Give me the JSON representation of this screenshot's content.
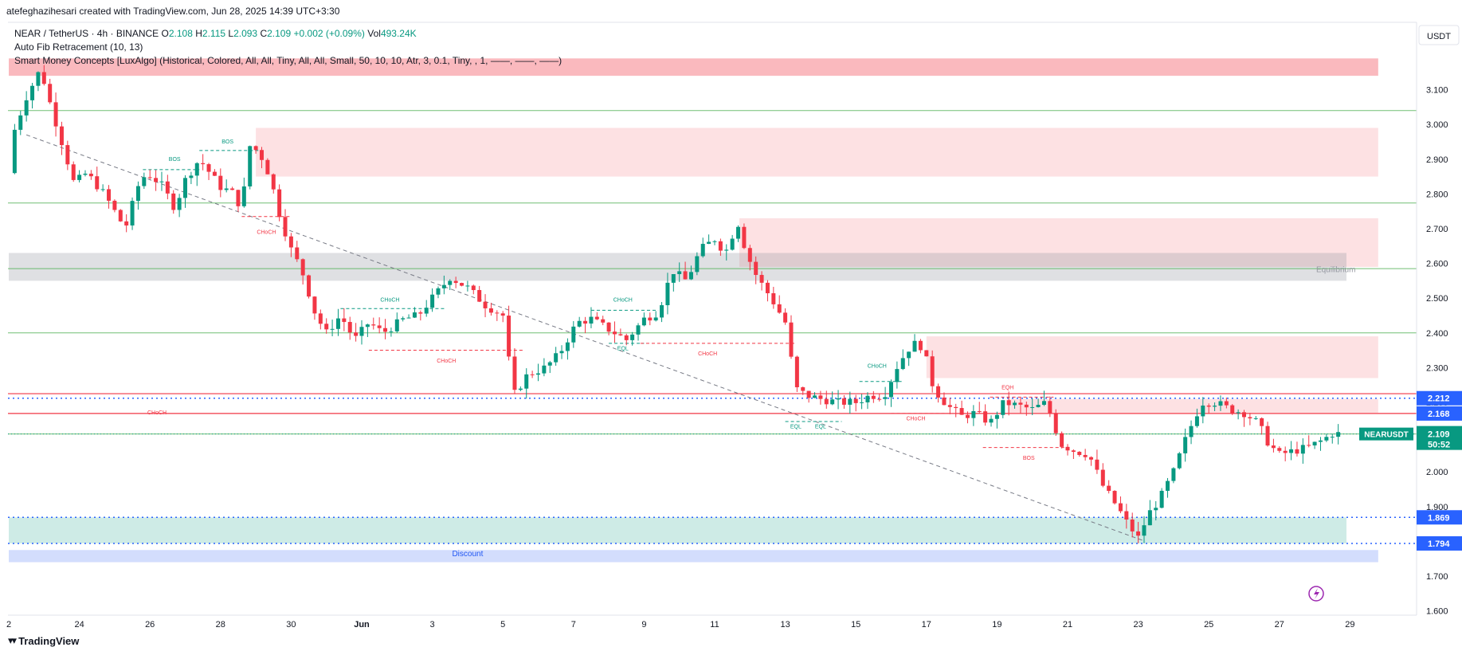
{
  "header": {
    "credit": "atefeghazihesari created with TradingView.com, Jun 28, 2025 14:39 UTC+3:30"
  },
  "legend": {
    "symbol": "NEAR / TetherUS · 4h · BINANCE",
    "open_label": "O",
    "open": "2.108",
    "high_label": "H",
    "high": "2.115",
    "low_label": "L",
    "low": "2.093",
    "close_label": "C",
    "close": "2.109",
    "change": "+0.002 (+0.09%)",
    "vol_label": "Vol",
    "vol": "493.24K",
    "indicator1": "Auto Fib Retracement (10, 13)",
    "indicator2": "Smart Money Concepts [LuxAlgo] (Historical, Colored, All, All, Tiny, All, All, Small, 50, 10, 10, Atr, 3, 0.1, Tiny, , 1, ——, ——, ——)"
  },
  "currency": "USDT",
  "brand": "TradingView",
  "colors": {
    "up": "#089981",
    "down": "#f23645",
    "supply": "#f23645",
    "demand": "#089981",
    "fib_green": "#4caf50",
    "blue_line": "#2962ff",
    "premium": "#f23645",
    "discount": "#2157f3"
  },
  "chart_data": {
    "type": "candlestick",
    "timeframe": "4h",
    "symbol": "NEARUSDT",
    "y_range": [
      1.56,
      3.2
    ],
    "y_ticks": [
      3.1,
      3.0,
      2.9,
      2.8,
      2.7,
      2.6,
      2.5,
      2.4,
      2.3,
      2.2,
      2.1,
      2.0,
      1.9,
      1.8,
      1.7,
      1.6
    ],
    "y_tick_labels": [
      "3.100",
      "3.000",
      "2.900",
      "2.800",
      "2.700",
      "2.600",
      "2.500",
      "2.400",
      "2.300",
      "2.200",
      "2.100",
      "2.000",
      "1.900",
      "1.800",
      "1.700",
      "1.600"
    ],
    "x_labels": [
      {
        "label": "2",
        "day": 0
      },
      {
        "label": "24",
        "day": 2
      },
      {
        "label": "26",
        "day": 4
      },
      {
        "label": "28",
        "day": 6
      },
      {
        "label": "30",
        "day": 8
      },
      {
        "label": "Jun",
        "day": 10
      },
      {
        "label": "3",
        "day": 12
      },
      {
        "label": "5",
        "day": 14
      },
      {
        "label": "7",
        "day": 16
      },
      {
        "label": "9",
        "day": 18
      },
      {
        "label": "11",
        "day": 20
      },
      {
        "label": "13",
        "day": 22
      },
      {
        "label": "15",
        "day": 24
      },
      {
        "label": "17",
        "day": 26
      },
      {
        "label": "19",
        "day": 28
      },
      {
        "label": "21",
        "day": 30
      },
      {
        "label": "23",
        "day": 32
      },
      {
        "label": "25",
        "day": 34
      },
      {
        "label": "27",
        "day": 36
      },
      {
        "label": "29",
        "day": 38
      }
    ],
    "anchors": [
      [
        0,
        2.86
      ],
      [
        0.15,
        2.98
      ],
      [
        0.5,
        3.08
      ],
      [
        0.9,
        3.16
      ],
      [
        1.2,
        3.05
      ],
      [
        1.5,
        2.95
      ],
      [
        1.85,
        2.83
      ],
      [
        2.2,
        2.86
      ],
      [
        2.7,
        2.8
      ],
      [
        3.0,
        2.75
      ],
      [
        3.3,
        2.7
      ],
      [
        3.65,
        2.82
      ],
      [
        3.9,
        2.86
      ],
      [
        4.3,
        2.83
      ],
      [
        4.7,
        2.76
      ],
      [
        5.0,
        2.84
      ],
      [
        5.4,
        2.9
      ],
      [
        5.7,
        2.86
      ],
      [
        6.0,
        2.82
      ],
      [
        6.4,
        2.8
      ],
      [
        6.6,
        2.75
      ],
      [
        6.8,
        2.94
      ],
      [
        7.1,
        2.92
      ],
      [
        7.4,
        2.85
      ],
      [
        7.7,
        2.73
      ],
      [
        8.0,
        2.64
      ],
      [
        8.3,
        2.58
      ],
      [
        8.7,
        2.45
      ],
      [
        9.0,
        2.4
      ],
      [
        9.4,
        2.45
      ],
      [
        9.8,
        2.38
      ],
      [
        10.2,
        2.43
      ],
      [
        10.6,
        2.4
      ],
      [
        11.2,
        2.44
      ],
      [
        11.6,
        2.45
      ],
      [
        12.0,
        2.5
      ],
      [
        12.5,
        2.56
      ],
      [
        13.0,
        2.53
      ],
      [
        13.5,
        2.48
      ],
      [
        14.0,
        2.45
      ],
      [
        14.3,
        2.22
      ],
      [
        14.7,
        2.28
      ],
      [
        15.2,
        2.3
      ],
      [
        15.6,
        2.34
      ],
      [
        16.1,
        2.43
      ],
      [
        16.5,
        2.44
      ],
      [
        17.0,
        2.41
      ],
      [
        17.5,
        2.38
      ],
      [
        18.0,
        2.44
      ],
      [
        18.4,
        2.46
      ],
      [
        18.8,
        2.58
      ],
      [
        19.2,
        2.55
      ],
      [
        19.6,
        2.64
      ],
      [
        20.0,
        2.67
      ],
      [
        20.3,
        2.63
      ],
      [
        20.65,
        2.72
      ],
      [
        20.9,
        2.63
      ],
      [
        21.2,
        2.56
      ],
      [
        21.6,
        2.5
      ],
      [
        22.0,
        2.43
      ],
      [
        22.3,
        2.24
      ],
      [
        22.6,
        2.22
      ],
      [
        23.0,
        2.21
      ],
      [
        23.5,
        2.2
      ],
      [
        24.0,
        2.2
      ],
      [
        24.4,
        2.22
      ],
      [
        24.8,
        2.22
      ],
      [
        25.2,
        2.31
      ],
      [
        25.6,
        2.37
      ],
      [
        25.9,
        2.36
      ],
      [
        26.2,
        2.24
      ],
      [
        26.6,
        2.19
      ],
      [
        27.0,
        2.16
      ],
      [
        27.4,
        2.17
      ],
      [
        27.8,
        2.14
      ],
      [
        28.2,
        2.2
      ],
      [
        28.6,
        2.19
      ],
      [
        29.0,
        2.18
      ],
      [
        29.4,
        2.2
      ],
      [
        29.8,
        2.08
      ],
      [
        30.2,
        2.06
      ],
      [
        30.6,
        2.05
      ],
      [
        31.0,
        1.96
      ],
      [
        31.4,
        1.9
      ],
      [
        31.7,
        1.85
      ],
      [
        32.0,
        1.81
      ],
      [
        32.3,
        1.88
      ],
      [
        32.6,
        1.92
      ],
      [
        33.0,
        2.0
      ],
      [
        33.4,
        2.11
      ],
      [
        33.8,
        2.2
      ],
      [
        34.2,
        2.2
      ],
      [
        34.6,
        2.18
      ],
      [
        35.0,
        2.17
      ],
      [
        35.4,
        2.14
      ],
      [
        35.7,
        2.08
      ],
      [
        36.0,
        2.05
      ],
      [
        36.4,
        2.06
      ],
      [
        36.8,
        2.07
      ],
      [
        37.2,
        2.09
      ],
      [
        37.5,
        2.11
      ],
      [
        37.75,
        2.109
      ]
    ],
    "zones": [
      {
        "name": "premium-top",
        "y": [
          3.14,
          3.19
        ],
        "x": [
          0,
          38.8
        ],
        "color": "#f23645",
        "opacity": 0.35
      },
      {
        "name": "supply-1",
        "y": [
          2.85,
          2.99
        ],
        "x": [
          7.0,
          38.8
        ],
        "color": "#f23645",
        "opacity": 0.15
      },
      {
        "name": "supply-2",
        "y": [
          2.59,
          2.73
        ],
        "x": [
          20.7,
          38.8
        ],
        "color": "#f23645",
        "opacity": 0.15
      },
      {
        "name": "equilibrium",
        "y": [
          2.55,
          2.63
        ],
        "x": [
          0,
          37.9
        ],
        "color": "#9598a1",
        "opacity": 0.3
      },
      {
        "name": "supply-3",
        "y": [
          2.27,
          2.39
        ],
        "x": [
          26.0,
          38.8
        ],
        "color": "#f23645",
        "opacity": 0.15
      },
      {
        "name": "supply-4",
        "y": [
          2.17,
          2.21
        ],
        "x": [
          28.3,
          38.8
        ],
        "color": "#f23645",
        "opacity": 0.15
      },
      {
        "name": "demand",
        "y": [
          1.794,
          1.869
        ],
        "x": [
          0,
          37.9
        ],
        "color": "#089981",
        "opacity": 0.2
      },
      {
        "name": "discount",
        "y": [
          1.74,
          1.775
        ],
        "x": [
          0,
          38.8
        ],
        "color": "#2157f3",
        "opacity": 0.2
      }
    ],
    "fib_levels": [
      3.04,
      2.774,
      2.585,
      2.4,
      2.109
    ],
    "dotted_levels": [
      {
        "value": 2.212,
        "label": "2.212"
      },
      {
        "value": 1.869,
        "label": "1.869"
      },
      {
        "value": 1.794,
        "label": "1.794"
      }
    ],
    "red_lines": [
      2.225,
      2.168
    ],
    "last_price": {
      "label": "NEARUSDT",
      "value": "2.109",
      "timer": "50:52"
    },
    "level_2168_label": "2.168",
    "trendline": {
      "from": [
        0.5,
        2.97
      ],
      "to": [
        32.2,
        1.8
      ]
    },
    "smc_labels": [
      {
        "text": "BOS",
        "day": 4.7,
        "price": 2.895,
        "color": "#089981"
      },
      {
        "text": "BOS",
        "day": 6.2,
        "price": 2.945,
        "color": "#089981"
      },
      {
        "text": "CHoCH",
        "day": 7.3,
        "price": 2.685,
        "color": "#f23645"
      },
      {
        "text": "CHoCH",
        "day": 10.8,
        "price": 2.49,
        "color": "#089981"
      },
      {
        "text": "CHoCH",
        "day": 12.4,
        "price": 2.315,
        "color": "#f23645"
      },
      {
        "text": "CHoCH",
        "day": 17.4,
        "price": 2.49,
        "color": "#089981"
      },
      {
        "text": "EQL",
        "day": 17.4,
        "price": 2.35,
        "color": "#089981"
      },
      {
        "text": "CHoCH",
        "day": 19.8,
        "price": 2.335,
        "color": "#f23645"
      },
      {
        "text": "CHoCH",
        "day": 4.2,
        "price": 2.165,
        "color": "#f23645"
      },
      {
        "text": "EQL",
        "day": 22.3,
        "price": 2.125,
        "color": "#089981"
      },
      {
        "text": "EQL",
        "day": 23.0,
        "price": 2.125,
        "color": "#089981"
      },
      {
        "text": "CHoCH",
        "day": 24.6,
        "price": 2.3,
        "color": "#089981"
      },
      {
        "text": "CHoCH",
        "day": 25.7,
        "price": 2.148,
        "color": "#f23645"
      },
      {
        "text": "EQH",
        "day": 28.3,
        "price": 2.238,
        "color": "#f23645"
      },
      {
        "text": "BOS",
        "day": 28.9,
        "price": 2.035,
        "color": "#f23645"
      },
      {
        "text": "Equilibrium",
        "day": 37.6,
        "price": 2.575,
        "color": "#9598a1"
      },
      {
        "text": "Discount",
        "day": 13.0,
        "price": 1.757,
        "color": "#2157f3"
      }
    ],
    "structure_lines": [
      {
        "from": [
          3.8,
          2.87
        ],
        "to": [
          5.4,
          2.87
        ],
        "color": "#089981"
      },
      {
        "from": [
          5.4,
          2.925
        ],
        "to": [
          7.1,
          2.925
        ],
        "color": "#089981"
      },
      {
        "from": [
          6.6,
          2.735
        ],
        "to": [
          8.0,
          2.735
        ],
        "color": "#f23645"
      },
      {
        "from": [
          9.4,
          2.47
        ],
        "to": [
          12.4,
          2.47
        ],
        "color": "#089981"
      },
      {
        "from": [
          10.2,
          2.35
        ],
        "to": [
          14.6,
          2.35
        ],
        "color": "#f23645"
      },
      {
        "from": [
          16.5,
          2.465
        ],
        "to": [
          18.4,
          2.465
        ],
        "color": "#089981"
      },
      {
        "from": [
          17.0,
          2.37
        ],
        "to": [
          18.0,
          2.37
        ],
        "color": "#089981"
      },
      {
        "from": [
          17.9,
          2.37
        ],
        "to": [
          22.3,
          2.37
        ],
        "color": "#f23645"
      },
      {
        "from": [
          22.0,
          2.145
        ],
        "to": [
          23.6,
          2.145
        ],
        "color": "#089981"
      },
      {
        "from": [
          24.1,
          2.26
        ],
        "to": [
          25.3,
          2.26
        ],
        "color": "#089981"
      },
      {
        "from": [
          25.0,
          2.168
        ],
        "to": [
          26.6,
          2.168
        ],
        "color": "#f23645"
      },
      {
        "from": [
          27.8,
          2.215
        ],
        "to": [
          29.6,
          2.215
        ],
        "color": "#f23645"
      },
      {
        "from": [
          27.6,
          2.07
        ],
        "to": [
          30.0,
          2.07
        ],
        "color": "#f23645"
      }
    ]
  }
}
